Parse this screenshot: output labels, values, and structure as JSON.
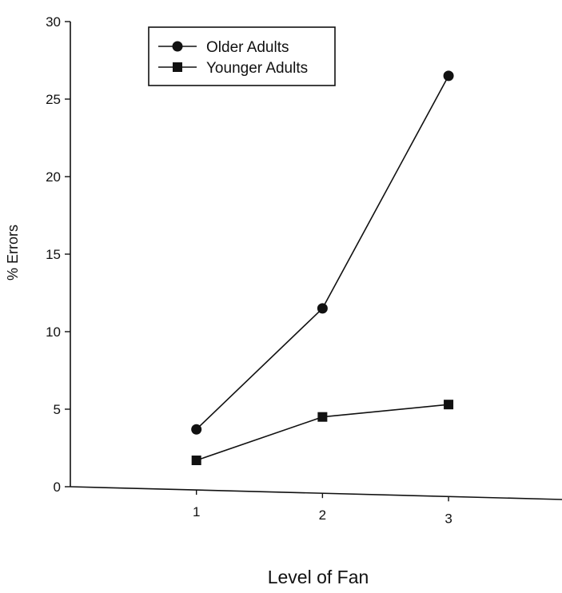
{
  "chart_data": {
    "type": "line",
    "title": "",
    "xlabel": "Level of Fan",
    "ylabel": "% Errors",
    "x": [
      1,
      2,
      3
    ],
    "x_tick_labels": [
      "1",
      "2",
      "3"
    ],
    "y_tick_labels": [
      "0",
      "5",
      "10",
      "15",
      "20",
      "25",
      "30"
    ],
    "ylim": [
      0,
      30
    ],
    "xlim": [
      0,
      3.9
    ],
    "grid": false,
    "legend_position": "top-left",
    "series": [
      {
        "name": "Older Adults",
        "marker": "circle",
        "values": [
          3.7,
          11.5,
          26.5
        ]
      },
      {
        "name": "Younger Adults",
        "marker": "square",
        "values": [
          1.7,
          4.5,
          5.3
        ]
      }
    ],
    "colors": {
      "line": "#111111",
      "background": "#ffffff"
    }
  }
}
